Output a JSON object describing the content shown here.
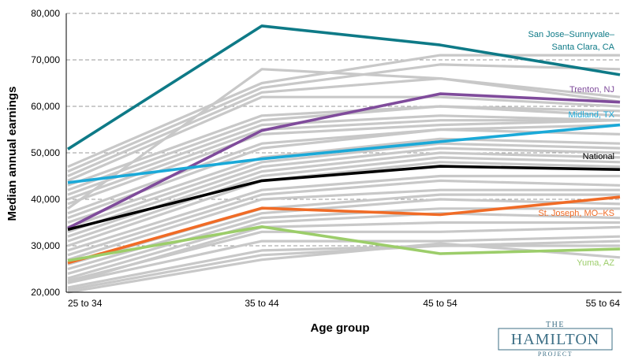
{
  "chart_data": {
    "type": "line",
    "xlabel": "Age group",
    "ylabel": "Median annual earnings",
    "categories": [
      "25 to 34",
      "35 to 44",
      "45 to 54",
      "55 to 64"
    ],
    "ylim": [
      20000,
      80000
    ],
    "yticks": [
      20000,
      30000,
      40000,
      50000,
      60000,
      70000,
      80000
    ],
    "ytick_labels": [
      "20,000",
      "30,000",
      "40,000",
      "50,000",
      "60,000",
      "70,000",
      "80,000"
    ],
    "grid": "horizontal dashed",
    "background_color": "#c8c8c8",
    "background_series": [
      [
        47000,
        65000,
        71000,
        71000
      ],
      [
        46000,
        64000,
        69000,
        68000
      ],
      [
        45000,
        63000,
        66000,
        62000
      ],
      [
        44000,
        62000,
        62000,
        60000
      ],
      [
        43000,
        58000,
        60000,
        59000
      ],
      [
        42000,
        57000,
        60000,
        58000
      ],
      [
        41000,
        56000,
        58000,
        57000
      ],
      [
        40000,
        55000,
        57000,
        57000
      ],
      [
        38000,
        68000,
        66000,
        61000
      ],
      [
        39000,
        54000,
        56000,
        57000
      ],
      [
        37000,
        52000,
        55000,
        56000
      ],
      [
        36000,
        51000,
        55000,
        54000
      ],
      [
        35000,
        49000,
        53000,
        52000
      ],
      [
        34000,
        48000,
        52000,
        51000
      ],
      [
        33000,
        47000,
        51000,
        50000
      ],
      [
        32000,
        46000,
        50000,
        49000
      ],
      [
        31000,
        45000,
        49000,
        48000
      ],
      [
        30000,
        44000,
        48000,
        47000
      ],
      [
        29000,
        42000,
        45000,
        45000
      ],
      [
        28000,
        41000,
        44000,
        43000
      ],
      [
        27000,
        40000,
        42000,
        42000
      ],
      [
        26000,
        38000,
        41000,
        41000
      ],
      [
        25000,
        37000,
        40000,
        39000
      ],
      [
        24000,
        36000,
        38000,
        38000
      ],
      [
        23000,
        35000,
        37000,
        36000
      ],
      [
        22000,
        34000,
        35000,
        35000
      ],
      [
        22500,
        33000,
        33000,
        34000
      ],
      [
        22000,
        31000,
        31000,
        32000
      ],
      [
        21000,
        29000,
        30000,
        31000
      ],
      [
        20500,
        28000,
        30000,
        30000
      ],
      [
        20000,
        27000,
        30500,
        27500
      ]
    ],
    "series": [
      {
        "name": "San Jose–Sunnyvale–Santa Clara, CA",
        "label_lines": [
          "San Jose–Sunnyvale–",
          "Santa Clara, CA"
        ],
        "color": "#0e7a87",
        "values": [
          50800,
          77300,
          73200,
          66800
        ]
      },
      {
        "name": "Trenton, NJ",
        "label_lines": [
          "Trenton, NJ"
        ],
        "color": "#7f4b9b",
        "values": [
          33800,
          54800,
          62700,
          60900
        ]
      },
      {
        "name": "Midland, TX",
        "label_lines": [
          "Midland, TX"
        ],
        "color": "#1aa9d8",
        "values": [
          43600,
          48700,
          52400,
          56000
        ]
      },
      {
        "name": "National",
        "label_lines": [
          "National"
        ],
        "color": "#000000",
        "values": [
          33500,
          44000,
          47100,
          46400
        ]
      },
      {
        "name": "St. Joseph, MO–KS",
        "label_lines": [
          "St. Joseph, MO–KS"
        ],
        "color": "#f06b26",
        "values": [
          26300,
          38100,
          36700,
          40500
        ]
      },
      {
        "name": "Yuma, AZ",
        "label_lines": [
          "Yuma, AZ"
        ],
        "color": "#9ccd6a",
        "values": [
          26800,
          34100,
          28300,
          29300
        ]
      }
    ]
  },
  "logo": {
    "the": "THE",
    "name": "HAMILTON",
    "project": "PROJECT",
    "color": "#3d6f86"
  }
}
